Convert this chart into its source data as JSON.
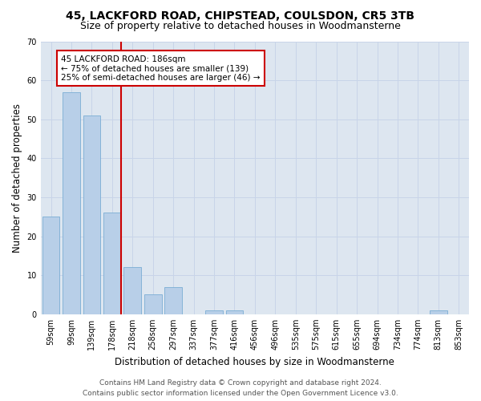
{
  "title": "45, LACKFORD ROAD, CHIPSTEAD, COULSDON, CR5 3TB",
  "subtitle": "Size of property relative to detached houses in Woodmansterne",
  "xlabel": "Distribution of detached houses by size in Woodmansterne",
  "ylabel": "Number of detached properties",
  "categories": [
    "59sqm",
    "99sqm",
    "139sqm",
    "178sqm",
    "218sqm",
    "258sqm",
    "297sqm",
    "337sqm",
    "377sqm",
    "416sqm",
    "456sqm",
    "496sqm",
    "535sqm",
    "575sqm",
    "615sqm",
    "655sqm",
    "694sqm",
    "734sqm",
    "774sqm",
    "813sqm",
    "853sqm"
  ],
  "values": [
    25,
    57,
    51,
    26,
    12,
    5,
    7,
    0,
    1,
    1,
    0,
    0,
    0,
    0,
    0,
    0,
    0,
    0,
    0,
    1,
    0
  ],
  "bar_color": "#b8cfe8",
  "bar_edge_color": "#7aadd4",
  "red_line_index": 3,
  "red_line_color": "#cc0000",
  "annotation_line1": "45 LACKFORD ROAD: 186sqm",
  "annotation_line2": "← 75% of detached houses are smaller (139)",
  "annotation_line3": "25% of semi-detached houses are larger (46) →",
  "annotation_box_color": "#ffffff",
  "annotation_box_edge_color": "#cc0000",
  "ylim": [
    0,
    70
  ],
  "yticks": [
    0,
    10,
    20,
    30,
    40,
    50,
    60,
    70
  ],
  "grid_color": "#c8d4e8",
  "background_color": "#dde6f0",
  "footer_line1": "Contains HM Land Registry data © Crown copyright and database right 2024.",
  "footer_line2": "Contains public sector information licensed under the Open Government Licence v3.0.",
  "title_fontsize": 10,
  "subtitle_fontsize": 9,
  "xlabel_fontsize": 8.5,
  "ylabel_fontsize": 8.5,
  "tick_fontsize": 7,
  "annotation_fontsize": 7.5,
  "footer_fontsize": 6.5
}
